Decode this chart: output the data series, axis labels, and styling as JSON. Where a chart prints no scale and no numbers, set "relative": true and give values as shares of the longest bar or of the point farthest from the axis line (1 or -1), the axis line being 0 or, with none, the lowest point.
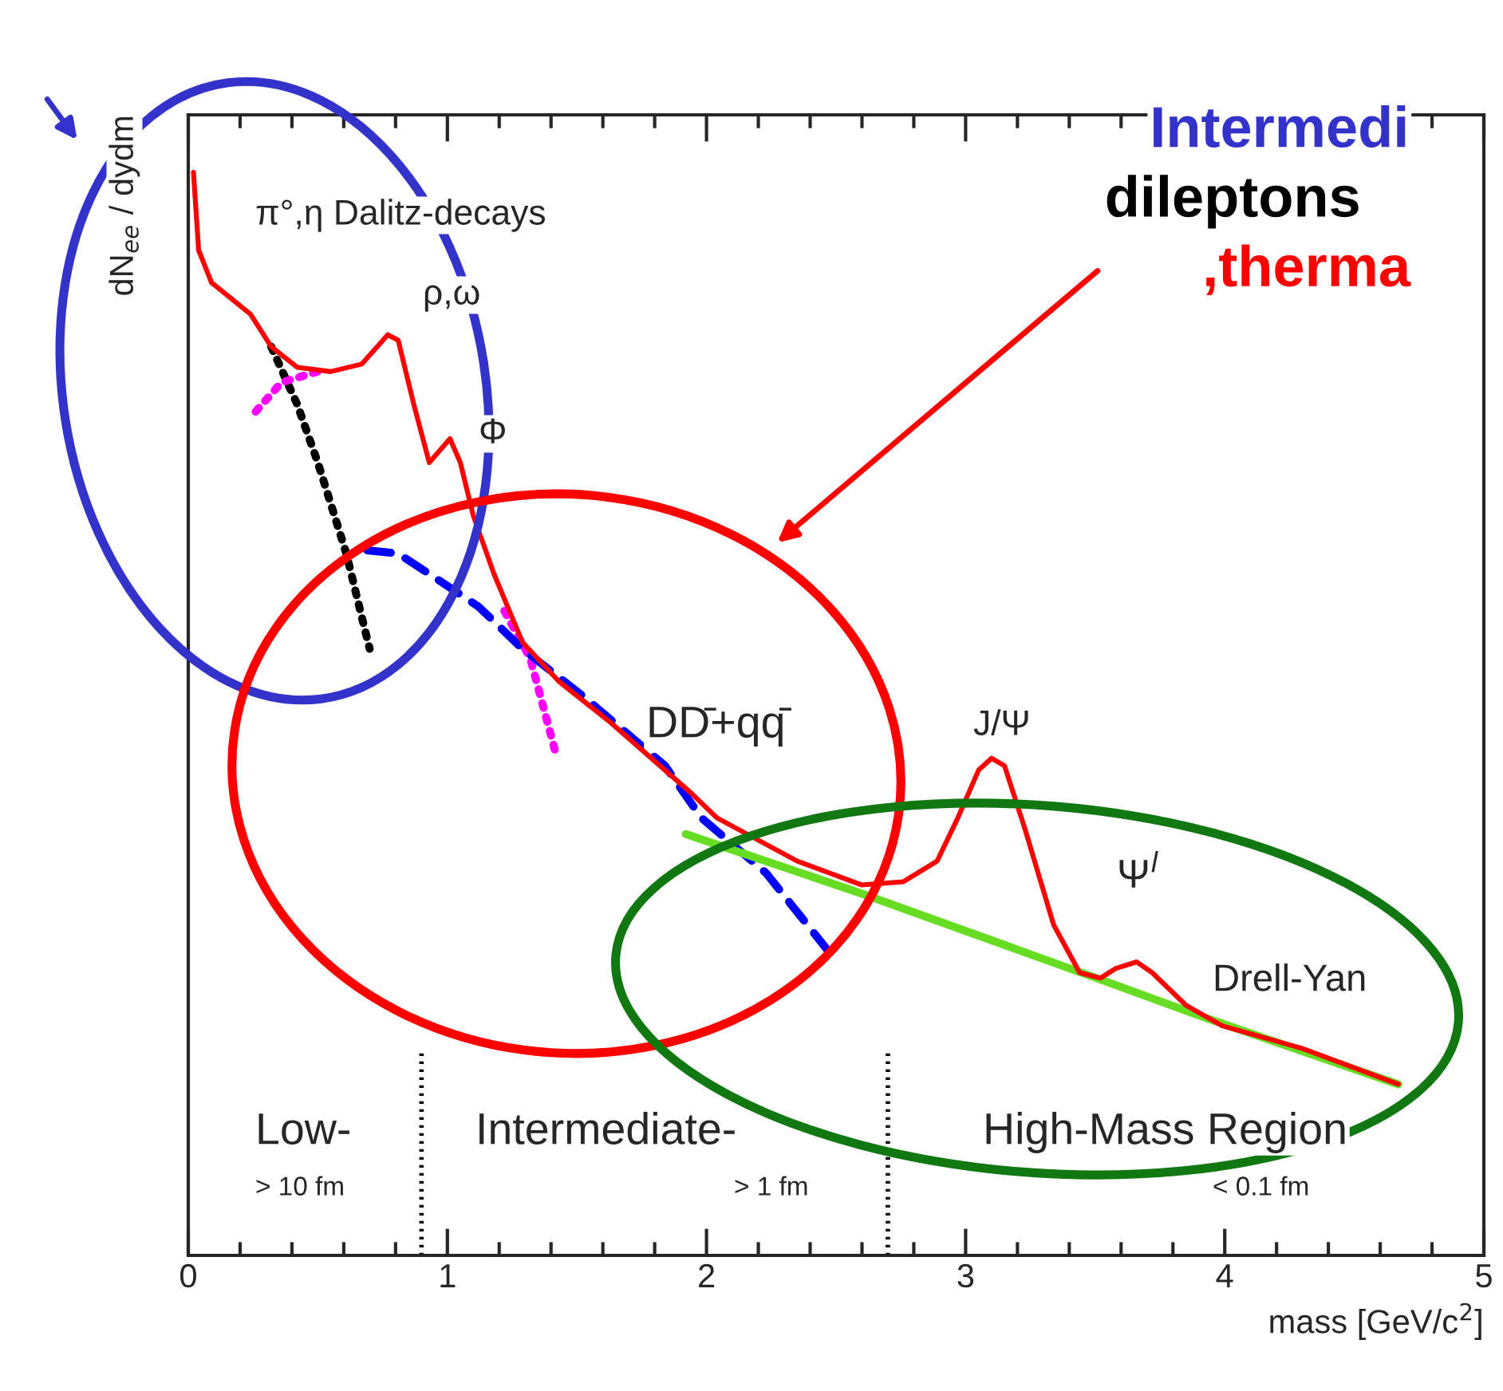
{
  "chart_data": {
    "type": "line",
    "relative": true,
    "ylabel": "dN$_{ee}$ / dydm",
    "xlabel": "mass [GeV/c$^{2}$]",
    "xlim": [
      0,
      5
    ],
    "xticks": [
      0,
      1,
      2,
      3,
      4,
      5
    ],
    "grid": false,
    "legend": false,
    "series": [
      {
        "color": "#ff0000",
        "line_style": "solid",
        "x": [
          0.02,
          0.04,
          0.09,
          0.24,
          0.32,
          0.42,
          0.55,
          0.67,
          0.77,
          0.81,
          0.87,
          0.93,
          1.01,
          1.05,
          1.1,
          1.18,
          1.29,
          1.43,
          1.63,
          1.94,
          2.04,
          2.35,
          2.6,
          2.76,
          2.89,
          2.97,
          3.05,
          3.1,
          3.15,
          3.23,
          3.34,
          3.44,
          3.52,
          3.58,
          3.66,
          3.72,
          3.85,
          3.99,
          4.3,
          4.67
        ],
        "values": [
          1.0,
          0.928,
          0.898,
          0.869,
          0.839,
          0.82,
          0.816,
          0.823,
          0.85,
          0.845,
          0.786,
          0.732,
          0.754,
          0.732,
          0.683,
          0.629,
          0.566,
          0.53,
          0.492,
          0.427,
          0.404,
          0.364,
          0.342,
          0.345,
          0.364,
          0.404,
          0.448,
          0.459,
          0.452,
          0.393,
          0.305,
          0.261,
          0.256,
          0.265,
          0.271,
          0.261,
          0.231,
          0.212,
          0.191,
          0.158
        ]
      },
      {
        "color": "#000000",
        "line_style": "dotted",
        "x": [
          0.32,
          0.42,
          0.5,
          0.61,
          0.67,
          0.7
        ],
        "values": [
          0.839,
          0.786,
          0.732,
          0.648,
          0.589,
          0.56
        ]
      },
      {
        "color": "#ff00ff",
        "line_style": "dotted",
        "x": [
          0.26,
          0.36,
          0.5,
          0.9,
          1.22,
          1.32,
          1.42
        ],
        "values": [
          0.779,
          0.806,
          0.816,
          null,
          0.595,
          0.551,
          0.462
        ]
      },
      {
        "color": "#0000ff",
        "line_style": "dashed",
        "x": [
          0.69,
          0.81,
          0.95,
          1.12,
          1.29,
          1.53,
          1.84,
          1.98,
          2.23,
          2.49
        ],
        "values": [
          0.651,
          0.648,
          0.626,
          0.599,
          0.56,
          0.515,
          0.452,
          0.404,
          0.353,
          0.275
        ]
      },
      {
        "color": "#66dd22",
        "line_style": "solid",
        "x": [
          1.92,
          2.6,
          3.54,
          3.93,
          4.67
        ],
        "values": [
          0.389,
          0.334,
          0.253,
          0.219,
          0.158
        ]
      }
    ],
    "ref_lines": [
      {
        "axis": "x",
        "value": 0.9,
        "color": "#000000",
        "line_style": "dotted"
      },
      {
        "axis": "x",
        "value": 2.7,
        "color": "#000000",
        "line_style": "dotted"
      }
    ],
    "annotations": [
      "π°,η Dalitz-decays",
      "ρ,ω",
      "Φ",
      "DD̄+qq̄",
      "J/Ψ",
      "Ψ$^{l}$",
      "Drell-Yan",
      "Low-",
      "> 10 fm",
      "Intermediate-",
      "> 1 fm",
      "High-Mass Region",
      "< 0.1 fm",
      "Intermedi",
      "dileptons",
      ",therma"
    ]
  }
}
